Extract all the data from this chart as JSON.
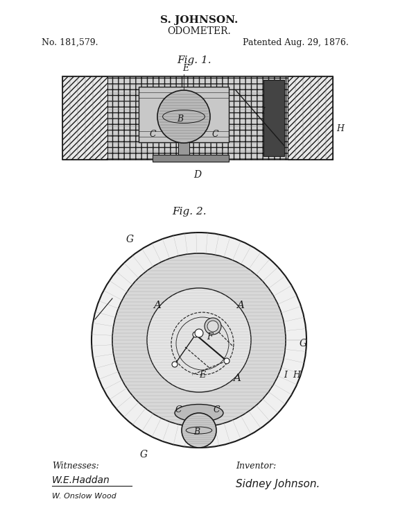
{
  "title1": "S. JOHNSON.",
  "title2": "ODOMETER.",
  "patent_no": "No. 181,579.",
  "patent_date": "Patented Aug. 29, 1876.",
  "fig1_label": "Fig. 1.",
  "fig2_label": "Fig. 2.",
  "witnesses_label": "Witnesses:",
  "inventor_label": "Inventor:",
  "witness1": "W.E.Haddan",
  "witness2": "W. Onslow Wood",
  "inventor_sig": "Sidney Johnson.",
  "bg_color": "#ffffff",
  "drawing_color": "#1a1a1a",
  "hatch_color": "#333333"
}
